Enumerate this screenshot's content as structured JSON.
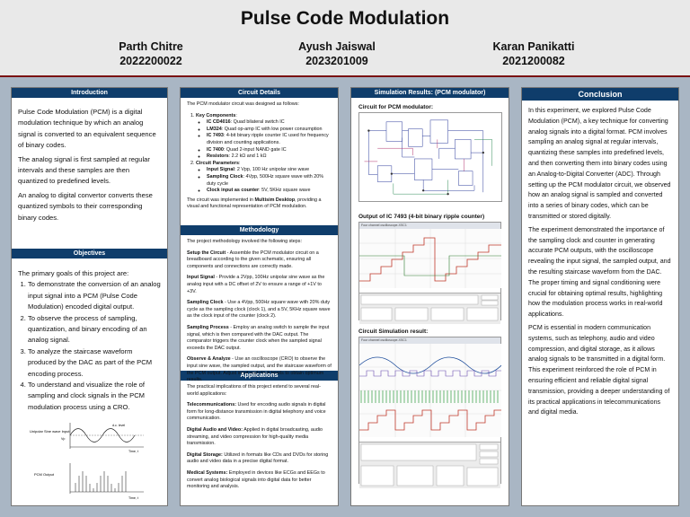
{
  "header": {
    "title": "Pulse Code Modulation",
    "authors": [
      {
        "name": "Parth Chitre",
        "id": "2022200022"
      },
      {
        "name": "Ayush Jaiswal",
        "id": "2023201009"
      },
      {
        "name": "Karan Panikatti",
        "id": "2021200082"
      }
    ]
  },
  "introduction": {
    "heading": "Introduction",
    "paragraphs": [
      "Pulse Code Modulation (PCM) is a digital modulation technique by which an analog signal is converted to an equivalent sequence of binary codes.",
      "The analog signal is first sampled at regular intervals and these samples are then quantized to predefined levels.",
      "An analog to digital convertor converts these quantized symbols to their corresponding binary codes."
    ]
  },
  "objectives": {
    "heading": "Objectives",
    "intro": "The primary goals of this project are:",
    "items": [
      "To demonstrate the conversion of an analog input signal into a PCM (Pulse Code Modulation) encoded digital output.",
      "To observe the process of sampling, quantization, and binary encoding of an analog signal.",
      "To analyze the staircase waveform produced by the DAC as part of the PCM encoding process.",
      "To understand and visualize the role of sampling and clock signals in the PCM modulation process using a CRO."
    ],
    "figure": {
      "label_input": "Unipolar Sine wave Input",
      "label_dc": "d.c. level",
      "label_vp": "Vp",
      "label_time1": "Time, t",
      "label_pcm": "PCM Output",
      "label_time2": "Time, t"
    }
  },
  "circuit_details": {
    "heading": "Circuit Details",
    "intro": "The PCM modulator circuit was designed as follows:",
    "key_title": "Key Components",
    "components": [
      {
        "name": "IC CD4016",
        "desc": ": Quad bilateral switch IC"
      },
      {
        "name": "LM324",
        "desc": ": Quad op-amp IC with low power consumption"
      },
      {
        "name": "IC 7493",
        "desc": ": 4-bit binary ripple counter IC used for frequency division and counting applications."
      },
      {
        "name": "IC 7400",
        "desc": ": Quad 2-input NAND gate IC"
      },
      {
        "name": "Resistors",
        "desc": ": 2.2 kΩ and 1 kΩ"
      }
    ],
    "params_title": "Circuit Parameters",
    "params": [
      {
        "name": "Input Signal",
        "desc": ": 2 Vpp, 100 Hz unipolar sine wave"
      },
      {
        "name": "Sampling Clock",
        "desc": ": 4Vpp, 500Hz square wave with 20% duty cycle"
      },
      {
        "name": "Clock input as counter",
        "desc": ": 5V, 5KHz square wave"
      }
    ],
    "closing_pre": "The circuit was implemented in ",
    "closing_bold": "Multisim Desktop",
    "closing_post": ", providing a visual and functional representation of PCM modulation."
  },
  "methodology": {
    "heading": "Methodology",
    "intro": "The project methodology involved the following steps:",
    "steps": [
      {
        "name": "Setup the Circuit",
        "desc": " - Assemble the PCM modulator circuit on a breadboard according to the given schematic, ensuring all components and connections are correctly made."
      },
      {
        "name": "Input Signal",
        "desc": " - Provide a 2Vpp, 100Hz unipolar sine wave as the analog input with a DC offset of 2V to ensure a range of +1V to +3V."
      },
      {
        "name": "Sampling Clock",
        "desc": " - Use a 4Vpp, 500Hz square wave with 20% duty cycle as the sampling clock (clock 1), and a 5V, 5KHz square wave as the clock input of the counter (clock 2)."
      },
      {
        "name": "Sampling Process",
        "desc": " - Employ an analog switch to sample the input signal, which is then compared with the DAC output. The comparator triggers the counter clock when the sampled signal exceeds the DAC output."
      },
      {
        "name": "Observe & Analyze",
        "desc": " - Use an oscilloscope (CRO) to observe the input sine wave, the sampled output, and the staircase waveform of the PCM output. Adjust input and clock levels to obtain optimum results."
      }
    ]
  },
  "applications": {
    "heading": "Applications",
    "intro": "The practical implications of this project extend to several real-world applications:",
    "items": [
      {
        "name": "Telecommunications:",
        "desc": " Used for encoding audio signals in digital form for long-distance transmission in digital telephony and voice communication."
      },
      {
        "name": "Digital Audio and Video:",
        "desc": " Applied in digital broadcasting, audio streaming, and video compression for high-quality media transmission."
      },
      {
        "name": "Digital Storage:",
        "desc": " Utilized in formats like CDs and DVDs for storing audio and video data in a precise digital format."
      },
      {
        "name": "Medical Systems:",
        "desc": " Employed in devices like ECGs and EEGs to convert analog biological signals into digital data for better monitoring and analysis."
      }
    ]
  },
  "simulation": {
    "heading": "Simulation Results: (PCM modulator)",
    "fig1_label": "Circuit for PCM modulator:",
    "fig2_label": "Output of IC 7493 (4-bit binary ripple counter)",
    "fig3_label": "Circuit Simulation result:",
    "scope_title": "Four channel oscilloscope-XSC1"
  },
  "conclusion": {
    "heading": "Conclusion",
    "paragraphs": [
      "In this experiment, we explored Pulse Code Modulation (PCM), a key technique for converting analog signals into a digital format. PCM involves sampling an analog signal at regular intervals, quantizing these samples into predefined levels, and then converting them into binary codes using an Analog-to-Digital Converter (ADC). Through setting up the PCM modulator circuit, we observed how an analog signal is sampled and converted into a series of binary codes, which can be transmitted or stored digitally.",
      "The experiment demonstrated the importance of the sampling clock and counter in generating accurate PCM outputs, with the oscilloscope revealing the input signal, the sampled output, and the resulting staircase waveform from the DAC. The proper timing and signal conditioning were crucial for obtaining optimal results, highlighting how the modulation process works in real-world applications.",
      "PCM is essential in modern communication systems, such as telephony, audio and video compression, and digital storage, as it allows analog signals to be transmitted in a digital form. This experiment reinforced the role of PCM in ensuring efficient and reliable digital signal transmission, providing a deeper understanding of its practical applications in telecommunications and digital media."
    ]
  }
}
